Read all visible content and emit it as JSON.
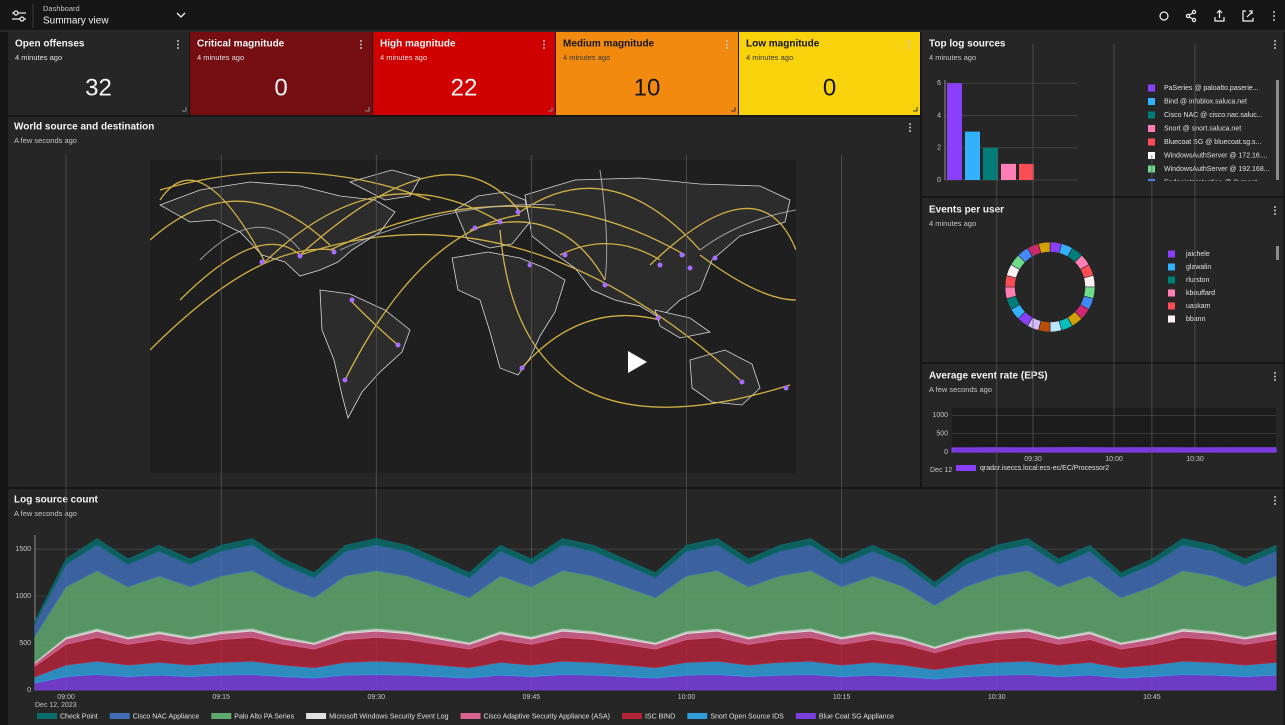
{
  "header": {
    "breadcrumb": "Dashboard",
    "title": "Summary view"
  },
  "tiles": [
    {
      "title": "Open offenses",
      "subtitle": "4 minutes ago",
      "value": 32,
      "color": "#262626"
    },
    {
      "title": "Critical magnitude",
      "subtitle": "4 minutes ago",
      "value": 0,
      "color": "#750e13"
    },
    {
      "title": "High magnitude",
      "subtitle": "4 minutes ago",
      "value": 22,
      "color": "#d10000"
    },
    {
      "title": "Medium magnitude",
      "subtitle": "4 minutes ago",
      "value": 10,
      "color": "#f18a0f"
    },
    {
      "title": "Low magnitude",
      "subtitle": "4 minutes ago",
      "value": 0,
      "color": "#f8d20a"
    }
  ],
  "map_panel": {
    "title": "World source and destination",
    "subtitle": "A few seconds ago"
  },
  "chart_data": [
    {
      "type": "bar",
      "title": "Top log sources",
      "subtitle": "4 minutes ago",
      "categories": [
        "PaSeries @ paloalto.paserie...",
        "Bind @ infoblox.saluca.net",
        "Cisco NAC @ cisco.nac.saluc...",
        "Snort @ snort.saluca.net",
        "Bluecoat SG @ bluecoat.sg.s...",
        "WindowsAuthServer @ 172.16....",
        "WindowsAuthServer @ 192.168...",
        "Endpointprotection @ Symant..."
      ],
      "values": [
        6,
        3,
        2,
        1,
        1,
        null,
        null,
        null
      ],
      "colors": [
        "#8a3ffc",
        "#33b1ff",
        "#007d79",
        "#ff7eb6",
        "#fa4d56",
        "#ffffff",
        "#6fdc8c",
        "#4589ff"
      ],
      "ylim": [
        0,
        6.2
      ],
      "yticks": [
        0,
        2,
        4,
        6
      ],
      "grid": true
    },
    {
      "type": "donut",
      "title": "Events per user",
      "subtitle": "4 minutes ago",
      "categories": [
        "jaichele",
        "glawalin",
        "rlurston",
        "kbouffard",
        "uaskam",
        "bbann",
        null,
        null,
        null,
        null,
        null,
        null,
        null,
        null,
        null,
        null,
        null,
        null,
        null,
        null,
        null,
        null,
        null,
        null
      ],
      "values": [
        1,
        1,
        1,
        1,
        1,
        1,
        1,
        1,
        1,
        1,
        1,
        1,
        1,
        1,
        1,
        1,
        1,
        1,
        1,
        1,
        1,
        1,
        1,
        1
      ],
      "colors": [
        "#8a3ffc",
        "#33b1ff",
        "#007d79",
        "#ff7eb6",
        "#fa4d56",
        "#fff1f1",
        "#6fdc8c",
        "#4589ff",
        "#d12771",
        "#d2a106",
        "#08bdba",
        "#bae6ff",
        "#ba4e00",
        "#d4bbff",
        "#8a3ffc",
        "#33b1ff",
        "#007d79",
        "#ff7eb6",
        "#fa4d56",
        "#fff1f1",
        "#6fdc8c",
        "#4589ff",
        "#d12771",
        "#d2a106"
      ]
    },
    {
      "type": "area",
      "title": "Average event rate (EPS)",
      "subtitle": "A few seconds ago",
      "categories": [
        null,
        null,
        "09:30",
        null,
        "10:00",
        null,
        "10:30",
        null,
        null
      ],
      "date_label": "Dec 12",
      "series": [
        {
          "name": "qradar.iseccs.local:ecs-ec/EC/Processor2",
          "color": "#8a3ffc",
          "values": [
            110,
            115,
            112,
            118,
            114,
            116,
            113,
            117,
            115
          ]
        }
      ],
      "ylim": [
        0,
        1200
      ],
      "yticks": [
        0,
        500,
        1000
      ],
      "grid": true
    },
    {
      "type": "stacked_area",
      "title": "Log source count",
      "subtitle": "A few seconds ago",
      "categories": [
        null,
        "09:00",
        null,
        null,
        null,
        null,
        "09:15",
        null,
        null,
        null,
        null,
        "09:30",
        null,
        null,
        null,
        null,
        "09:45",
        null,
        null,
        null,
        null,
        "10:00",
        null,
        null,
        null,
        null,
        "10:15",
        null,
        null,
        null,
        null,
        "10:30",
        null,
        null,
        null,
        null,
        "10:45",
        null,
        null,
        null,
        null
      ],
      "date_label": "Dec 12, 2023",
      "series": [
        {
          "name": "Check Point",
          "color": "#0a6b6b",
          "values": [
            30,
            57,
            66,
            57,
            63,
            57,
            63,
            66,
            57,
            51,
            63,
            66,
            63,
            57,
            51,
            63,
            57,
            66,
            63,
            57,
            51,
            63,
            66,
            57,
            63,
            66,
            57,
            63,
            57,
            47,
            57,
            63,
            66,
            57,
            63,
            51,
            57,
            66,
            63,
            57,
            63
          ]
        },
        {
          "name": "Cisco NAC Appliance",
          "color": "#3f6db5",
          "values": [
            125,
            238,
            275,
            238,
            263,
            238,
            263,
            275,
            238,
            213,
            263,
            275,
            263,
            238,
            213,
            263,
            238,
            275,
            263,
            238,
            213,
            263,
            275,
            238,
            263,
            275,
            238,
            263,
            238,
            195,
            238,
            263,
            275,
            238,
            263,
            213,
            238,
            275,
            263,
            238,
            263
          ]
        },
        {
          "name": "Palo Alto PA Series",
          "color": "#5fa86e",
          "values": [
            280,
            532,
            616,
            532,
            588,
            532,
            588,
            616,
            532,
            476,
            588,
            616,
            588,
            532,
            476,
            588,
            532,
            616,
            588,
            532,
            476,
            588,
            616,
            532,
            588,
            616,
            532,
            588,
            532,
            437,
            532,
            588,
            616,
            532,
            588,
            476,
            532,
            616,
            588,
            532,
            588
          ]
        },
        {
          "name": "Microsoft Windows Security Event Log",
          "color": "#e0e0e0",
          "values": [
            13,
            24,
            28,
            24,
            26,
            24,
            26,
            28,
            24,
            21,
            26,
            28,
            26,
            24,
            21,
            26,
            24,
            28,
            26,
            24,
            21,
            26,
            28,
            24,
            26,
            28,
            24,
            26,
            24,
            20,
            24,
            26,
            28,
            24,
            26,
            21,
            24,
            28,
            26,
            24,
            26
          ]
        },
        {
          "name": "Cisco Adaptive Security Appliance (ASA)",
          "color": "#d9648f",
          "values": [
            30,
            57,
            66,
            57,
            63,
            57,
            63,
            66,
            57,
            51,
            63,
            66,
            63,
            57,
            51,
            63,
            57,
            66,
            63,
            57,
            51,
            63,
            66,
            57,
            63,
            66,
            57,
            63,
            57,
            47,
            57,
            63,
            66,
            57,
            63,
            51,
            57,
            66,
            63,
            57,
            63
          ]
        },
        {
          "name": "ISC BIND",
          "color": "#b3243a",
          "values": [
            115,
            219,
            253,
            219,
            242,
            219,
            242,
            253,
            219,
            196,
            242,
            253,
            242,
            219,
            196,
            242,
            219,
            253,
            242,
            219,
            196,
            242,
            253,
            219,
            242,
            253,
            219,
            242,
            219,
            179,
            219,
            242,
            253,
            219,
            242,
            196,
            219,
            253,
            242,
            219,
            242
          ]
        },
        {
          "name": "Snort Open Source IDS",
          "color": "#2f9ed8",
          "values": [
            65,
            124,
            143,
            124,
            137,
            124,
            137,
            143,
            124,
            111,
            137,
            143,
            137,
            124,
            111,
            137,
            124,
            143,
            137,
            124,
            111,
            137,
            143,
            124,
            137,
            143,
            124,
            137,
            124,
            101,
            124,
            137,
            143,
            124,
            137,
            111,
            124,
            143,
            137,
            124,
            137
          ]
        },
        {
          "name": "Blue Coat SG Appliance",
          "color": "#7b3fe0",
          "values": [
            75,
            143,
            165,
            143,
            158,
            143,
            158,
            165,
            143,
            128,
            158,
            165,
            158,
            143,
            128,
            158,
            143,
            165,
            158,
            143,
            128,
            158,
            165,
            143,
            158,
            165,
            143,
            158,
            143,
            117,
            143,
            158,
            165,
            143,
            158,
            128,
            143,
            165,
            158,
            143,
            158
          ]
        }
      ],
      "ylim": [
        0,
        1650
      ],
      "yticks": [
        0,
        500,
        1000,
        1500
      ],
      "grid": true
    }
  ]
}
